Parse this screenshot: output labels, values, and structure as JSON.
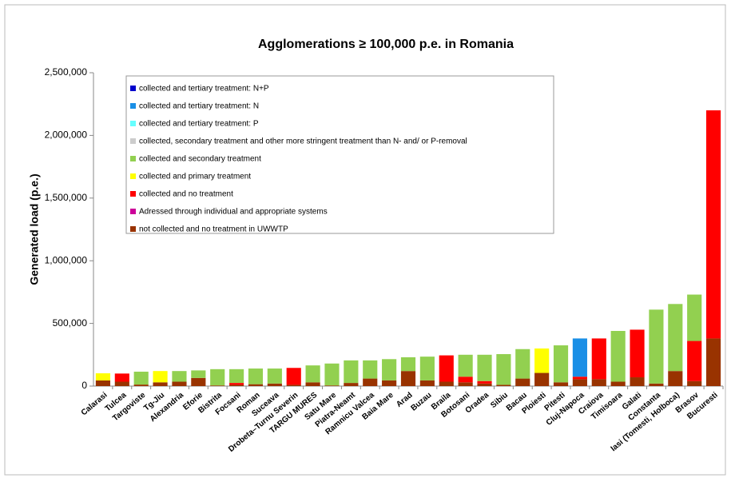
{
  "chart_data": {
    "type": "bar",
    "stacked": true,
    "title": "Agglomerations ≥ 100,000 p.e. in Romania",
    "y_label": "Generated load (p.e.)",
    "categories": [
      "Calarasi",
      "Tulcea",
      "Targoviste",
      "Tg-Jiu",
      "Alexandria",
      "Eforie",
      "Bistrita",
      "Focsani",
      "Roman",
      "Suceava",
      "Drobeta–Turnu Severin",
      "TARGU MURES",
      "Satu Mare",
      "Piatra-Neamt",
      "Ramnicu Valcea",
      "Baia Mare",
      "Arad",
      "Buzau",
      "Braila",
      "Botosani",
      "Oradea",
      "Sibiu",
      "Bacau",
      "Ploiesti",
      "Pitesti",
      "Cluj-Napoca",
      "Craiova",
      "Timisoara",
      "Galati",
      "Constanta",
      "Iasi (Tomesti, Holboca)",
      "Brasov",
      "Bucuresti"
    ],
    "series": [
      {
        "name": "collected and tertiary treatment:  N+P",
        "color": "#0000cc",
        "values": [
          0,
          0,
          0,
          0,
          0,
          0,
          0,
          0,
          0,
          0,
          0,
          0,
          0,
          0,
          0,
          0,
          0,
          0,
          0,
          0,
          0,
          0,
          0,
          0,
          0,
          0,
          0,
          0,
          0,
          0,
          0,
          0,
          0
        ]
      },
      {
        "name": "collected and tertiary treatment:  N",
        "color": "#1a8fe6",
        "values": [
          0,
          0,
          0,
          0,
          0,
          0,
          0,
          0,
          0,
          0,
          0,
          0,
          0,
          0,
          0,
          0,
          0,
          0,
          0,
          0,
          0,
          0,
          0,
          0,
          0,
          305000,
          0,
          0,
          0,
          0,
          0,
          0,
          0
        ]
      },
      {
        "name": "collected and  tertiary treatment:  P",
        "color": "#66ffff",
        "values": [
          0,
          0,
          0,
          0,
          0,
          0,
          0,
          0,
          0,
          0,
          0,
          0,
          0,
          0,
          0,
          0,
          0,
          0,
          0,
          0,
          0,
          0,
          0,
          0,
          0,
          0,
          0,
          0,
          0,
          0,
          0,
          0,
          0
        ]
      },
      {
        "name": "collected, secondary treatment and other more stringent treatment than N- and/ or P-removal",
        "color": "#cccccc",
        "values": [
          0,
          0,
          0,
          0,
          0,
          0,
          0,
          0,
          0,
          0,
          0,
          0,
          0,
          0,
          0,
          0,
          0,
          0,
          0,
          0,
          0,
          0,
          0,
          0,
          0,
          0,
          0,
          0,
          0,
          0,
          0,
          0,
          0
        ]
      },
      {
        "name": "collected and secondary treatment",
        "color": "#92d050",
        "values": [
          0,
          0,
          103000,
          0,
          85000,
          60000,
          130000,
          110000,
          125000,
          120000,
          0,
          135000,
          175000,
          180000,
          145000,
          170000,
          110000,
          190000,
          0,
          175000,
          210000,
          245000,
          235000,
          0,
          295000,
          0,
          0,
          405000,
          0,
          590000,
          535000,
          370000,
          0
        ]
      },
      {
        "name": "collected and primary treatment",
        "color": "#ffff00",
        "values": [
          57000,
          0,
          0,
          90000,
          0,
          0,
          0,
          0,
          0,
          0,
          0,
          0,
          0,
          0,
          0,
          0,
          0,
          0,
          0,
          0,
          0,
          0,
          0,
          195000,
          0,
          0,
          0,
          0,
          0,
          0,
          0,
          0,
          0
        ]
      },
      {
        "name": "collected and no treatment",
        "color": "#ff0000",
        "values": [
          0,
          65000,
          0,
          0,
          0,
          0,
          0,
          15000,
          0,
          0,
          135000,
          0,
          0,
          0,
          0,
          0,
          0,
          0,
          210000,
          45000,
          20000,
          0,
          0,
          0,
          0,
          20000,
          325000,
          0,
          380000,
          0,
          0,
          320000,
          1820000
        ]
      },
      {
        "name": "Adressed through individual and appropriate systems",
        "color": "#cc0099",
        "values": [
          0,
          0,
          0,
          0,
          0,
          0,
          0,
          0,
          0,
          0,
          0,
          0,
          0,
          0,
          0,
          0,
          0,
          0,
          0,
          0,
          0,
          0,
          0,
          0,
          0,
          0,
          0,
          0,
          0,
          0,
          0,
          0,
          0
        ]
      },
      {
        "name": "not collected and no treatment in UWWTP",
        "color": "#993300",
        "values": [
          45000,
          35000,
          12000,
          30000,
          35000,
          65000,
          5000,
          10000,
          15000,
          20000,
          10000,
          30000,
          5000,
          25000,
          60000,
          45000,
          120000,
          45000,
          35000,
          30000,
          20000,
          10000,
          60000,
          105000,
          30000,
          55000,
          55000,
          35000,
          70000,
          20000,
          120000,
          40000,
          380000
        ]
      }
    ],
    "ylim": [
      0,
      2500000
    ],
    "yticks": [
      0,
      {
        "value": 500000,
        "label": "500,000"
      },
      {
        "value": 1000000,
        "label": "1,000,000"
      },
      {
        "value": 1500000,
        "label": "1,500,000"
      },
      {
        "value": 2000000,
        "label": "2,000,000"
      },
      {
        "value": 2500000,
        "label": "2,500,000"
      }
    ],
    "legend": "top-left"
  }
}
